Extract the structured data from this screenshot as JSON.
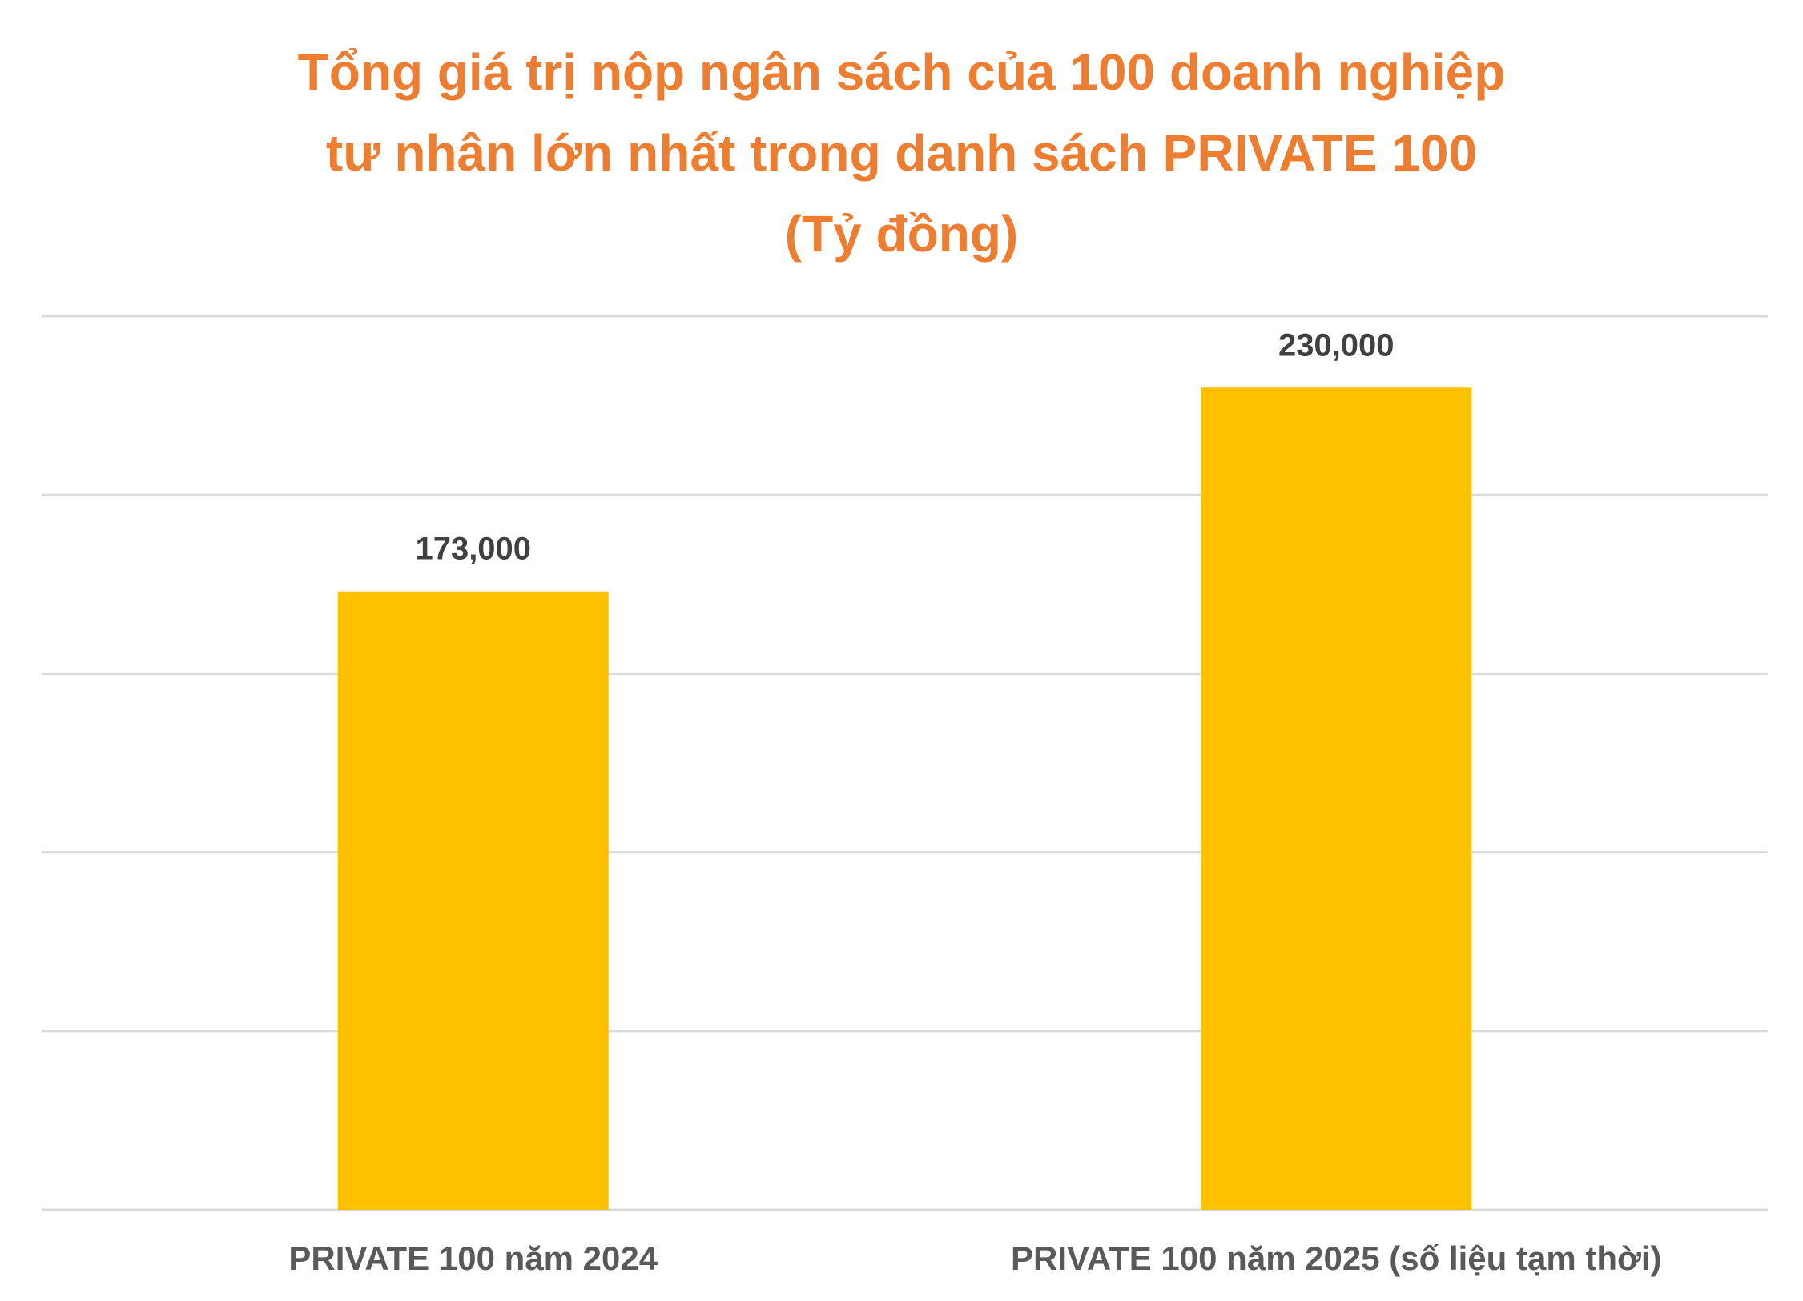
{
  "chart_data": {
    "type": "bar",
    "title_lines": [
      "Tổng giá trị nộp ngân sách của 100 doanh nghiệp",
      "tư nhân lớn nhất trong danh sách PRIVATE 100",
      "(Tỷ đồng)"
    ],
    "categories": [
      "PRIVATE 100 năm 2024",
      "PRIVATE 100 năm 2025 (số liệu tạm thời)"
    ],
    "values": [
      173000,
      230000
    ],
    "data_labels": [
      "173,000",
      "230,000"
    ],
    "ylim": [
      0,
      250000
    ],
    "y_grid_step": 50000,
    "grid": true,
    "legend": "none",
    "colors": {
      "bar": "#FFC000",
      "title": "#ED7D31",
      "grid": "#D9D9D9",
      "data_label": "#404040",
      "tick_label": "#595959"
    }
  }
}
